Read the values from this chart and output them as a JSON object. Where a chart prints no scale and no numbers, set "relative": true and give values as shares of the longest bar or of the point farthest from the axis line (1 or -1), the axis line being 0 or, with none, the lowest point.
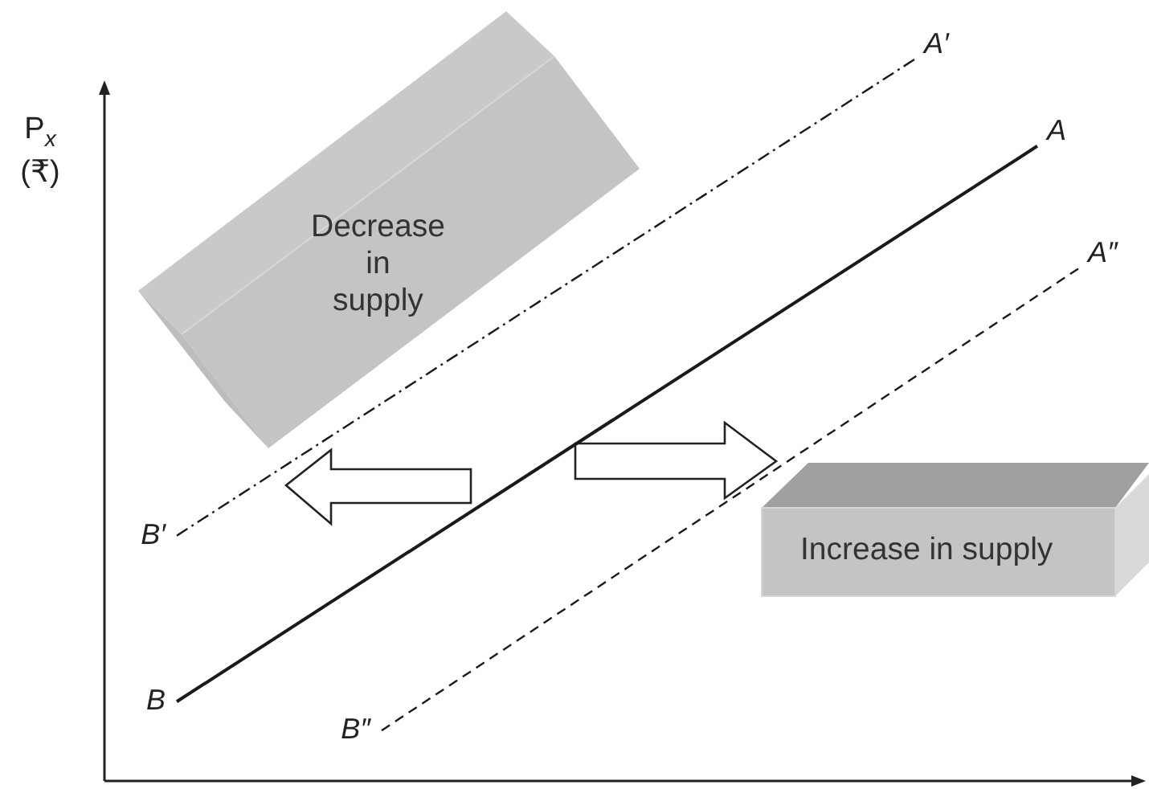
{
  "chart_data": {
    "type": "line",
    "relative": true,
    "ylabel": "P$_{x}$ (₹)",
    "marker": "none",
    "categories": [
      null,
      null,
      null,
      null,
      null,
      null,
      null,
      null,
      null,
      null,
      null,
      null,
      null,
      null,
      null,
      null,
      null,
      null,
      null,
      null,
      null,
      null,
      null
    ],
    "series": [
      {
        "color": "#1a1a1a",
        "line_style": "solid",
        "values": [
          0.11,
          null,
          null,
          null,
          null,
          null,
          null,
          null,
          null,
          null,
          null,
          null,
          null,
          null,
          null,
          null,
          null,
          null,
          null,
          null,
          null,
          0.88,
          null
        ]
      },
      {
        "color": "#1a1a1a",
        "line_style": "dashdot",
        "values": [
          0.34,
          null,
          null,
          null,
          null,
          null,
          null,
          null,
          null,
          null,
          null,
          null,
          null,
          null,
          null,
          null,
          null,
          null,
          1.0,
          null,
          null,
          null,
          null
        ]
      },
      {
        "color": "#1a1a1a",
        "line_style": "dashed",
        "values": [
          null,
          null,
          null,
          null,
          null,
          0.07,
          null,
          null,
          null,
          null,
          null,
          null,
          null,
          null,
          null,
          null,
          null,
          null,
          null,
          null,
          null,
          null,
          0.71
        ]
      }
    ],
    "annotations": [
      "A",
      "B",
      "A′",
      "B′",
      "A″",
      "B″",
      "Decrease in supply",
      "Increase in supply"
    ]
  }
}
